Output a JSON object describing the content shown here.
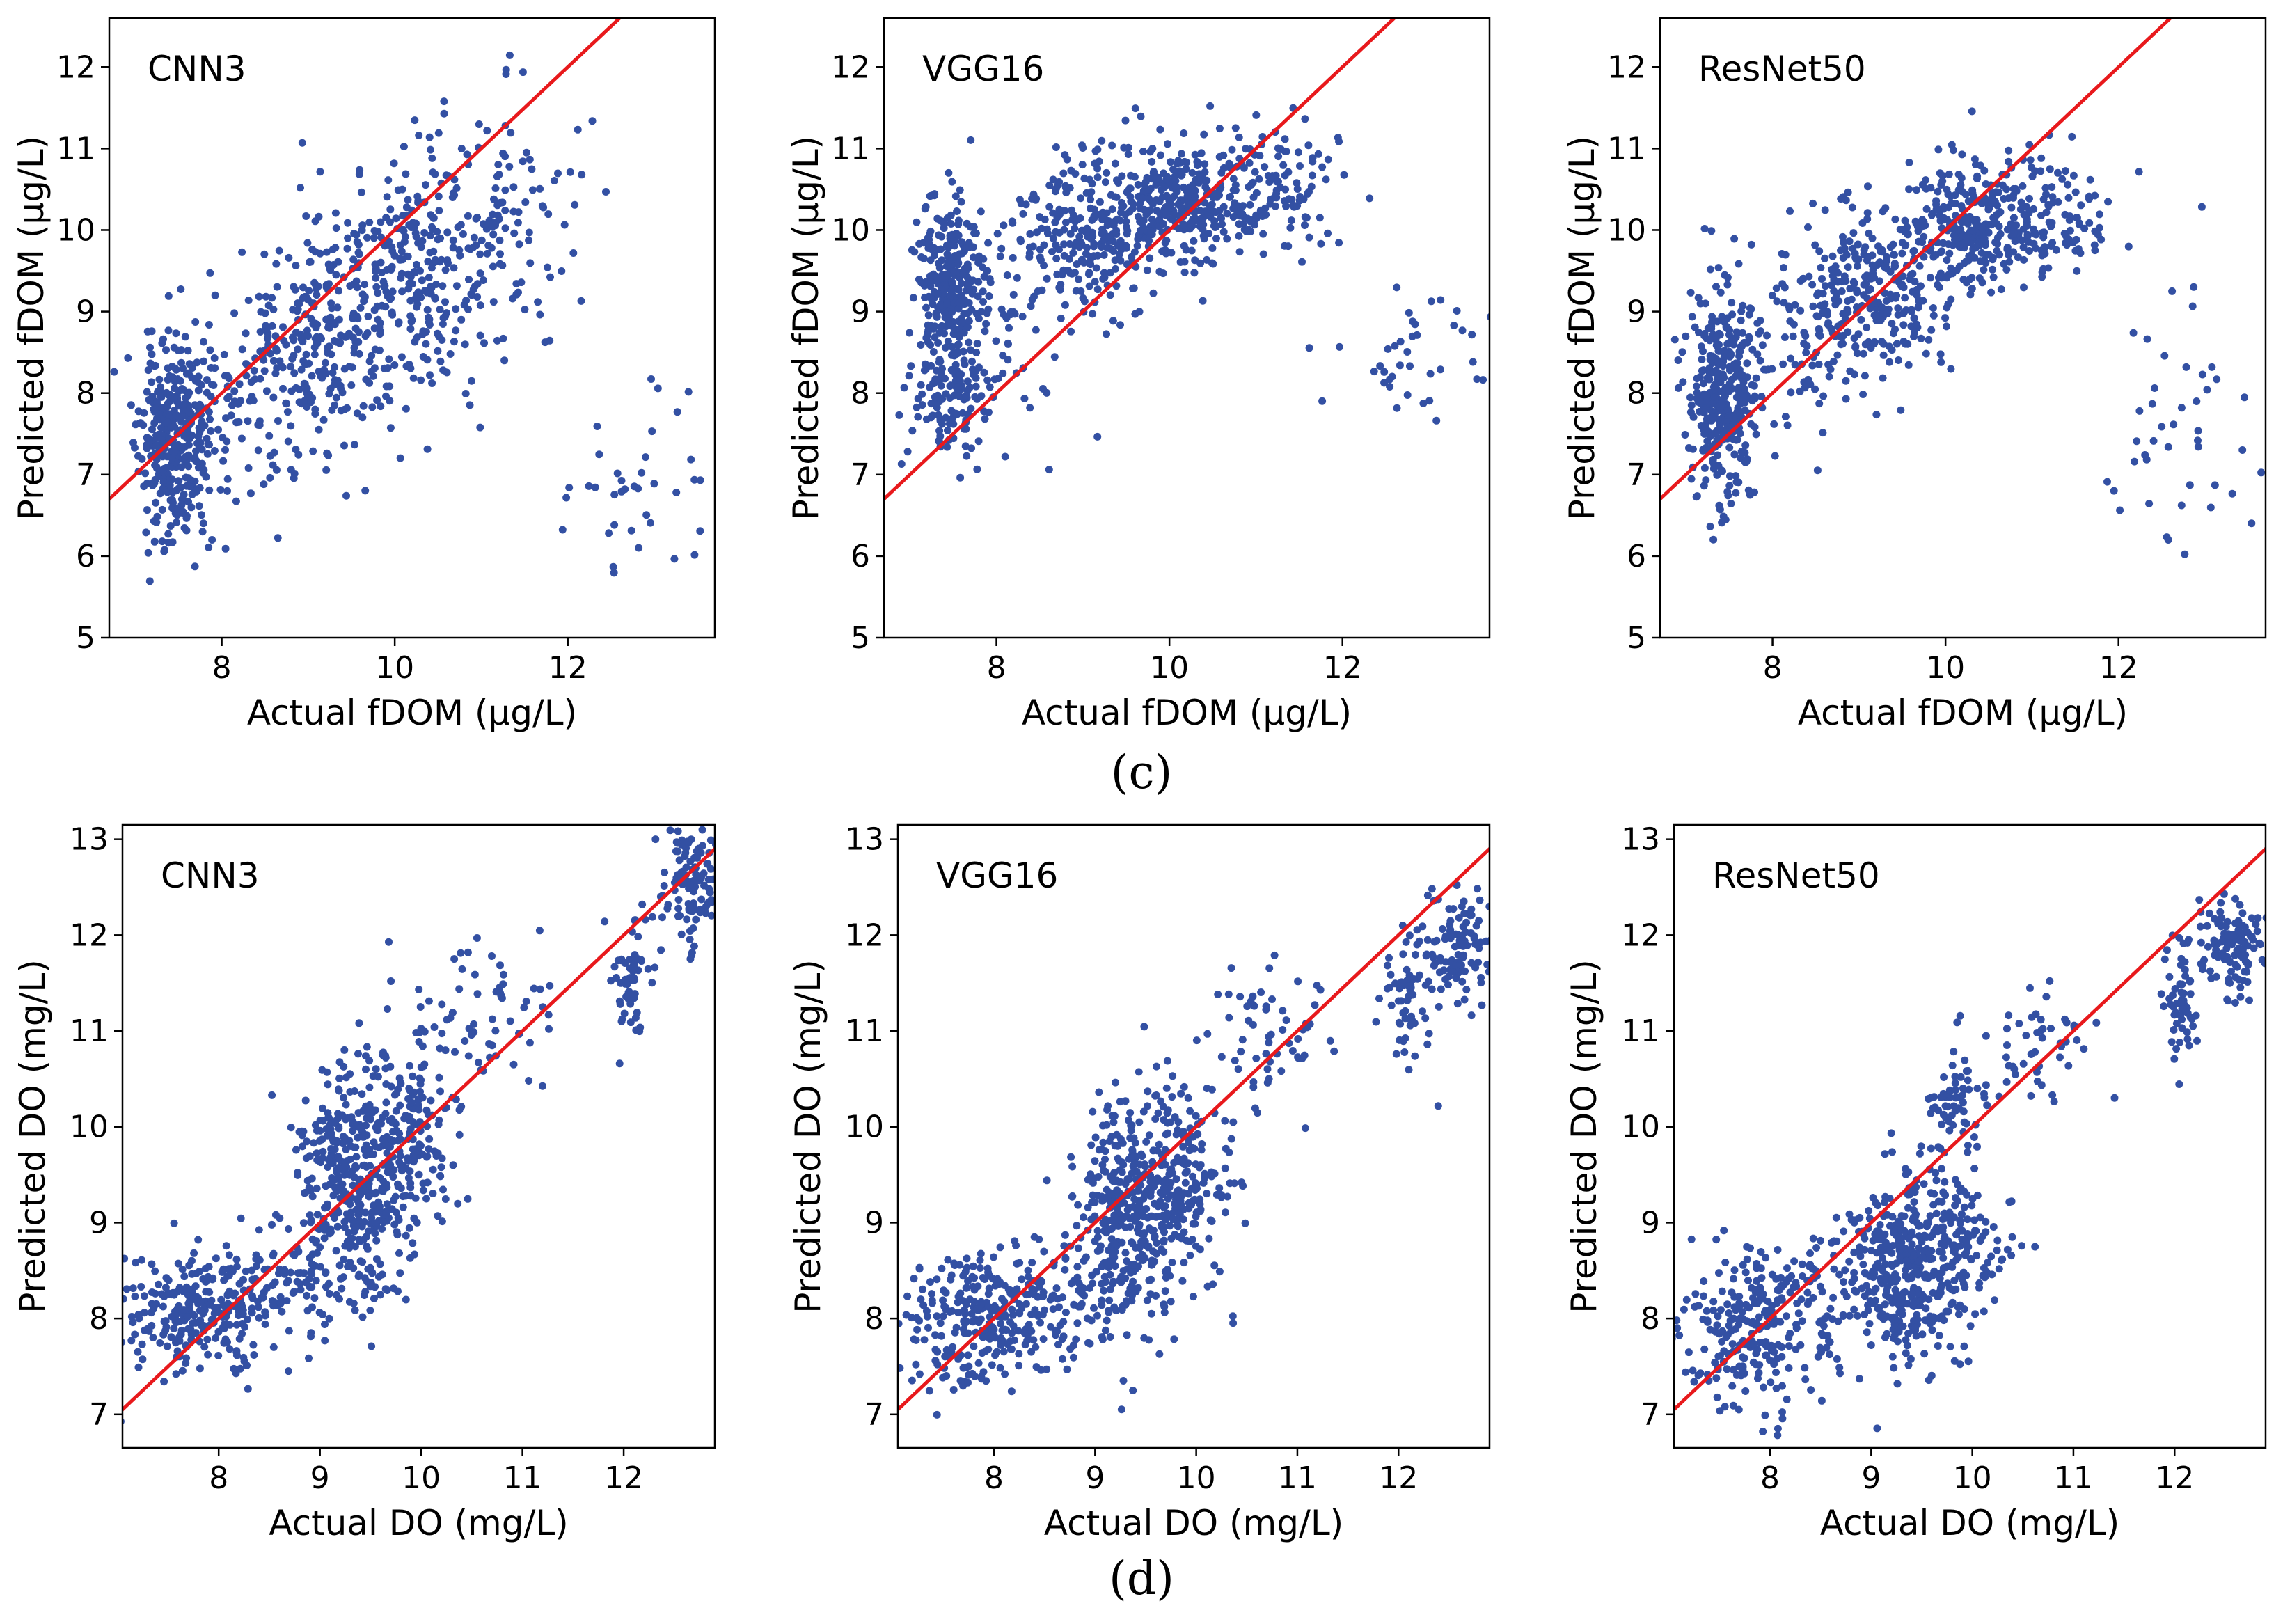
{
  "captions": {
    "c": "(c)",
    "d": "(d)"
  },
  "colors": {
    "points": "#3350a3",
    "fit_line": "#e8191c",
    "frame": "#000000"
  },
  "chart_data": [
    {
      "id": "c-cnn3",
      "row": "c",
      "type": "scatter",
      "title": "CNN3",
      "xlabel": "Actual fDOM (μg/L)",
      "ylabel": "Predicted fDOM (μg/L)",
      "xlim": [
        6.7,
        13.7
      ],
      "ylim": [
        5.0,
        12.6
      ],
      "xticks": [
        8,
        10,
        12
      ],
      "yticks": [
        5,
        6,
        7,
        8,
        9,
        10,
        11,
        12
      ],
      "reference_line": {
        "label": "y = x"
      },
      "seed": 11,
      "clusters": [
        {
          "x": 7.45,
          "y": 7.4,
          "sx": 0.2,
          "sy": 0.6,
          "n": 380
        },
        {
          "x": 9.1,
          "y": 8.7,
          "sx": 0.42,
          "sy": 0.75,
          "n": 260
        },
        {
          "x": 10.15,
          "y": 9.5,
          "sx": 0.42,
          "sy": 0.7,
          "n": 260
        },
        {
          "x": 11.2,
          "y": 10.2,
          "sx": 0.45,
          "sy": 0.8,
          "n": 120
        },
        {
          "x": 8.1,
          "y": 7.9,
          "sx": 0.35,
          "sy": 0.6,
          "n": 70
        },
        {
          "x": 12.7,
          "y": 6.6,
          "sx": 0.5,
          "sy": 0.9,
          "n": 40
        }
      ]
    },
    {
      "id": "c-vgg16",
      "row": "c",
      "type": "scatter",
      "title": "VGG16",
      "xlabel": "Actual fDOM (μg/L)",
      "ylabel": "Predicted fDOM (μg/L)",
      "xlim": [
        6.7,
        13.7
      ],
      "ylim": [
        5.0,
        12.6
      ],
      "xticks": [
        8,
        10,
        12
      ],
      "yticks": [
        5,
        6,
        7,
        8,
        9,
        10,
        11,
        12
      ],
      "reference_line": {
        "label": "y = x"
      },
      "seed": 23,
      "clusters": [
        {
          "x": 7.45,
          "y": 9.3,
          "sx": 0.2,
          "sy": 0.55,
          "n": 260
        },
        {
          "x": 7.45,
          "y": 7.9,
          "sx": 0.2,
          "sy": 0.4,
          "n": 120
        },
        {
          "x": 9.1,
          "y": 10.0,
          "sx": 0.45,
          "sy": 0.45,
          "n": 280
        },
        {
          "x": 10.2,
          "y": 10.35,
          "sx": 0.42,
          "sy": 0.35,
          "n": 280
        },
        {
          "x": 11.2,
          "y": 10.5,
          "sx": 0.4,
          "sy": 0.45,
          "n": 100
        },
        {
          "x": 8.2,
          "y": 8.8,
          "sx": 0.5,
          "sy": 0.8,
          "n": 60
        },
        {
          "x": 12.9,
          "y": 8.4,
          "sx": 0.45,
          "sy": 0.45,
          "n": 40
        }
      ]
    },
    {
      "id": "c-resnet50",
      "row": "c",
      "type": "scatter",
      "title": "ResNet50",
      "xlabel": "Actual fDOM (μg/L)",
      "ylabel": "Predicted fDOM (μg/L)",
      "xlim": [
        6.7,
        13.7
      ],
      "ylim": [
        5.0,
        12.6
      ],
      "xticks": [
        8,
        10,
        12
      ],
      "yticks": [
        5,
        6,
        7,
        8,
        9,
        10,
        11,
        12
      ],
      "reference_line": {
        "label": "y = x"
      },
      "seed": 37,
      "clusters": [
        {
          "x": 7.45,
          "y": 8.0,
          "sx": 0.2,
          "sy": 0.65,
          "n": 360
        },
        {
          "x": 9.1,
          "y": 9.2,
          "sx": 0.42,
          "sy": 0.5,
          "n": 260
        },
        {
          "x": 10.2,
          "y": 10.1,
          "sx": 0.42,
          "sy": 0.4,
          "n": 280
        },
        {
          "x": 11.2,
          "y": 10.1,
          "sx": 0.4,
          "sy": 0.4,
          "n": 110
        },
        {
          "x": 8.3,
          "y": 8.5,
          "sx": 0.45,
          "sy": 0.6,
          "n": 60
        },
        {
          "x": 12.8,
          "y": 7.6,
          "sx": 0.5,
          "sy": 0.9,
          "n": 45
        }
      ]
    },
    {
      "id": "d-cnn3",
      "row": "d",
      "type": "scatter",
      "title": "CNN3",
      "xlabel": "Actual DO (mg/L)",
      "ylabel": "Predicted DO (mg/L)",
      "xlim": [
        7.05,
        12.9
      ],
      "ylim": [
        6.65,
        13.15
      ],
      "xticks": [
        8,
        9,
        10,
        11,
        12
      ],
      "yticks": [
        7,
        8,
        9,
        10,
        11,
        12,
        13
      ],
      "reference_line": {
        "label": "y = x"
      },
      "seed": 41,
      "clusters": [
        {
          "x": 7.8,
          "y": 8.1,
          "sx": 0.38,
          "sy": 0.35,
          "n": 260
        },
        {
          "x": 9.3,
          "y": 9.4,
          "sx": 0.25,
          "sy": 0.6,
          "n": 320
        },
        {
          "x": 9.85,
          "y": 9.8,
          "sx": 0.25,
          "sy": 0.6,
          "n": 220
        },
        {
          "x": 10.7,
          "y": 11.3,
          "sx": 0.35,
          "sy": 0.4,
          "n": 60
        },
        {
          "x": 12.1,
          "y": 11.6,
          "sx": 0.1,
          "sy": 0.35,
          "n": 60
        },
        {
          "x": 12.65,
          "y": 12.5,
          "sx": 0.15,
          "sy": 0.3,
          "n": 110
        },
        {
          "x": 8.7,
          "y": 8.4,
          "sx": 0.4,
          "sy": 0.3,
          "n": 90
        }
      ]
    },
    {
      "id": "d-vgg16",
      "row": "d",
      "type": "scatter",
      "title": "VGG16",
      "xlabel": "Actual DO (mg/L)",
      "ylabel": "Predicted DO (mg/L)",
      "xlim": [
        7.05,
        12.9
      ],
      "ylim": [
        6.65,
        13.15
      ],
      "xticks": [
        8,
        9,
        10,
        11,
        12
      ],
      "yticks": [
        7,
        8,
        9,
        10,
        11,
        12,
        13
      ],
      "reference_line": {
        "label": "y = x"
      },
      "seed": 53,
      "clusters": [
        {
          "x": 7.8,
          "y": 8.0,
          "sx": 0.4,
          "sy": 0.35,
          "n": 260
        },
        {
          "x": 9.3,
          "y": 9.1,
          "sx": 0.25,
          "sy": 0.6,
          "n": 320
        },
        {
          "x": 9.85,
          "y": 9.4,
          "sx": 0.25,
          "sy": 0.55,
          "n": 220
        },
        {
          "x": 10.7,
          "y": 10.9,
          "sx": 0.35,
          "sy": 0.4,
          "n": 60
        },
        {
          "x": 12.1,
          "y": 11.3,
          "sx": 0.12,
          "sy": 0.35,
          "n": 60
        },
        {
          "x": 12.6,
          "y": 11.9,
          "sx": 0.18,
          "sy": 0.3,
          "n": 110
        },
        {
          "x": 8.7,
          "y": 8.2,
          "sx": 0.4,
          "sy": 0.3,
          "n": 90
        }
      ]
    },
    {
      "id": "d-resnet50",
      "row": "d",
      "type": "scatter",
      "title": "ResNet50",
      "xlabel": "Actual DO (mg/L)",
      "ylabel": "Predicted DO (mg/L)",
      "xlim": [
        7.05,
        12.9
      ],
      "ylim": [
        6.65,
        13.15
      ],
      "xticks": [
        8,
        9,
        10,
        11,
        12
      ],
      "yticks": [
        7,
        8,
        9,
        10,
        11,
        12,
        13
      ],
      "reference_line": {
        "label": "y = x"
      },
      "seed": 67,
      "clusters": [
        {
          "x": 7.8,
          "y": 7.9,
          "sx": 0.4,
          "sy": 0.4,
          "n": 240
        },
        {
          "x": 9.3,
          "y": 8.5,
          "sx": 0.25,
          "sy": 0.45,
          "n": 300
        },
        {
          "x": 9.85,
          "y": 8.8,
          "sx": 0.25,
          "sy": 0.4,
          "n": 160
        },
        {
          "x": 9.85,
          "y": 10.3,
          "sx": 0.15,
          "sy": 0.25,
          "n": 60
        },
        {
          "x": 10.7,
          "y": 10.9,
          "sx": 0.35,
          "sy": 0.3,
          "n": 50
        },
        {
          "x": 12.1,
          "y": 11.3,
          "sx": 0.12,
          "sy": 0.3,
          "n": 60
        },
        {
          "x": 12.6,
          "y": 11.9,
          "sx": 0.18,
          "sy": 0.25,
          "n": 110
        },
        {
          "x": 8.6,
          "y": 8.3,
          "sx": 0.45,
          "sy": 0.35,
          "n": 80
        }
      ]
    }
  ]
}
